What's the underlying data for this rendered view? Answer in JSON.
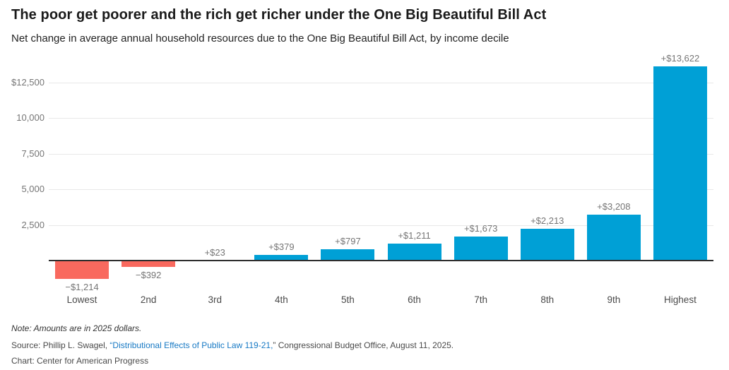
{
  "header": {
    "title": "The poor get poorer and the rich get richer under the One Big Beautiful Bill Act",
    "subtitle": "Net change in average annual household resources due to the One Big Beautiful Bill Act, by income decile"
  },
  "chart_data": {
    "type": "bar",
    "title": "The poor get poorer and the rich get richer under the One Big Beautiful Bill Act",
    "subtitle": "Net change in average annual household resources due to the One Big Beautiful Bill Act, by income decile",
    "xlabel": "",
    "ylabel": "",
    "categories": [
      "Lowest",
      "2nd",
      "3rd",
      "4th",
      "5th",
      "6th",
      "7th",
      "8th",
      "9th",
      "Highest"
    ],
    "values": [
      -1214,
      -392,
      23,
      379,
      797,
      1211,
      1673,
      2213,
      3208,
      13622
    ],
    "value_labels": [
      "−$1,214",
      "−$392",
      "+$23",
      "+$379",
      "+$797",
      "+$1,211",
      "+$1,673",
      "+$2,213",
      "+$3,208",
      "+$13,622"
    ],
    "y_ticks": [
      {
        "value": 2500,
        "label": "2,500"
      },
      {
        "value": 5000,
        "label": "5,000"
      },
      {
        "value": 7500,
        "label": "7,500"
      },
      {
        "value": 10000,
        "label": "10,000"
      },
      {
        "value": 12500,
        "label": "$12,500"
      }
    ],
    "ylim": [
      -1500,
      13900
    ],
    "grid": true,
    "legend": "none",
    "colors": {
      "positive_bar": "#00a0d6",
      "negative_bar": "#f9695e",
      "gridline": "#e8e8e8",
      "zero_axis": "#2e2e2e",
      "tick_label": "#757575",
      "value_label": "#757575",
      "category_label": "#4a4a4a"
    }
  },
  "footer": {
    "note": "Note: Amounts are in 2025 dollars.",
    "source_prefix": "Source: Phillip L. Swagel, ",
    "source_link": "“Distributional Effects of Public Law 119-21,",
    "source_suffix": "” Congressional Budget Office, August 11, 2025.",
    "credit": "Chart: Center for American Progress"
  }
}
